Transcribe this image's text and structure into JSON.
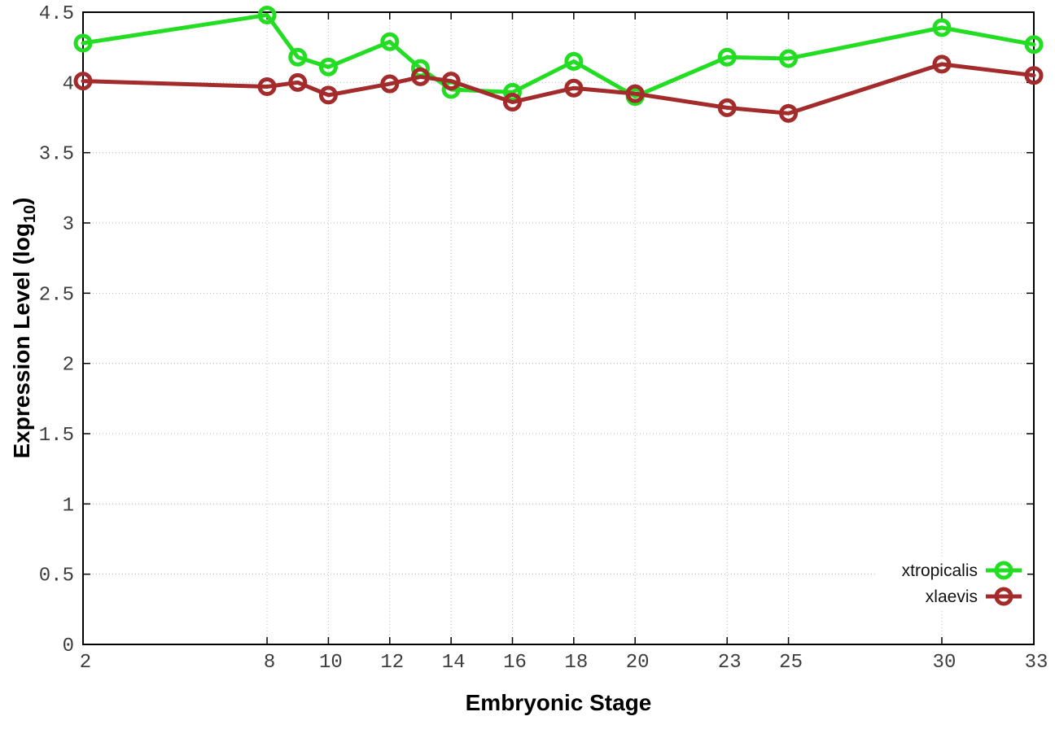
{
  "chart_data": {
    "type": "line",
    "title": "",
    "xlabel": "Embryonic Stage",
    "ylabel": "Expression Level (log10)",
    "ylabel_main": "Expression Level (log",
    "ylabel_sub": "10",
    "ylabel_close": ")",
    "x": [
      2,
      8,
      9,
      10,
      12,
      13,
      14,
      16,
      18,
      20,
      23,
      25,
      30,
      33
    ],
    "series": [
      {
        "name": "xtropicalis",
        "color": "#22dd22",
        "values": [
          4.28,
          4.48,
          4.18,
          4.11,
          4.29,
          4.1,
          3.95,
          3.93,
          4.15,
          3.9,
          4.18,
          4.17,
          4.39,
          4.27
        ]
      },
      {
        "name": "xlaevis",
        "color": "#a32b2b",
        "values": [
          4.01,
          3.97,
          4.0,
          3.91,
          3.99,
          4.04,
          4.01,
          3.86,
          3.96,
          3.92,
          3.82,
          3.78,
          4.13,
          4.05
        ]
      }
    ],
    "xlim": [
      2,
      33
    ],
    "ylim": [
      0,
      4.5
    ],
    "xticks": [
      2,
      8,
      10,
      12,
      14,
      16,
      18,
      20,
      23,
      25,
      30,
      33
    ],
    "xtick_labels": [
      "2",
      "8",
      "10",
      "12",
      "14",
      "16",
      "18",
      "20",
      "23",
      "25",
      "30",
      "33"
    ],
    "yticks": [
      0,
      0.5,
      1,
      1.5,
      2,
      2.5,
      3,
      3.5,
      4,
      4.5
    ],
    "ytick_labels": [
      "0",
      "0.5",
      "1",
      "1.5",
      "2",
      "2.5",
      "3",
      "3.5",
      "4",
      "4.5"
    ],
    "grid": true,
    "grid_color": "#b8b8b8",
    "axis_color": "#000000",
    "tick_label_color": "#3d3d3d",
    "legend_position": "inside-bottom-right",
    "marker": "open-circle",
    "line_width": 5
  }
}
